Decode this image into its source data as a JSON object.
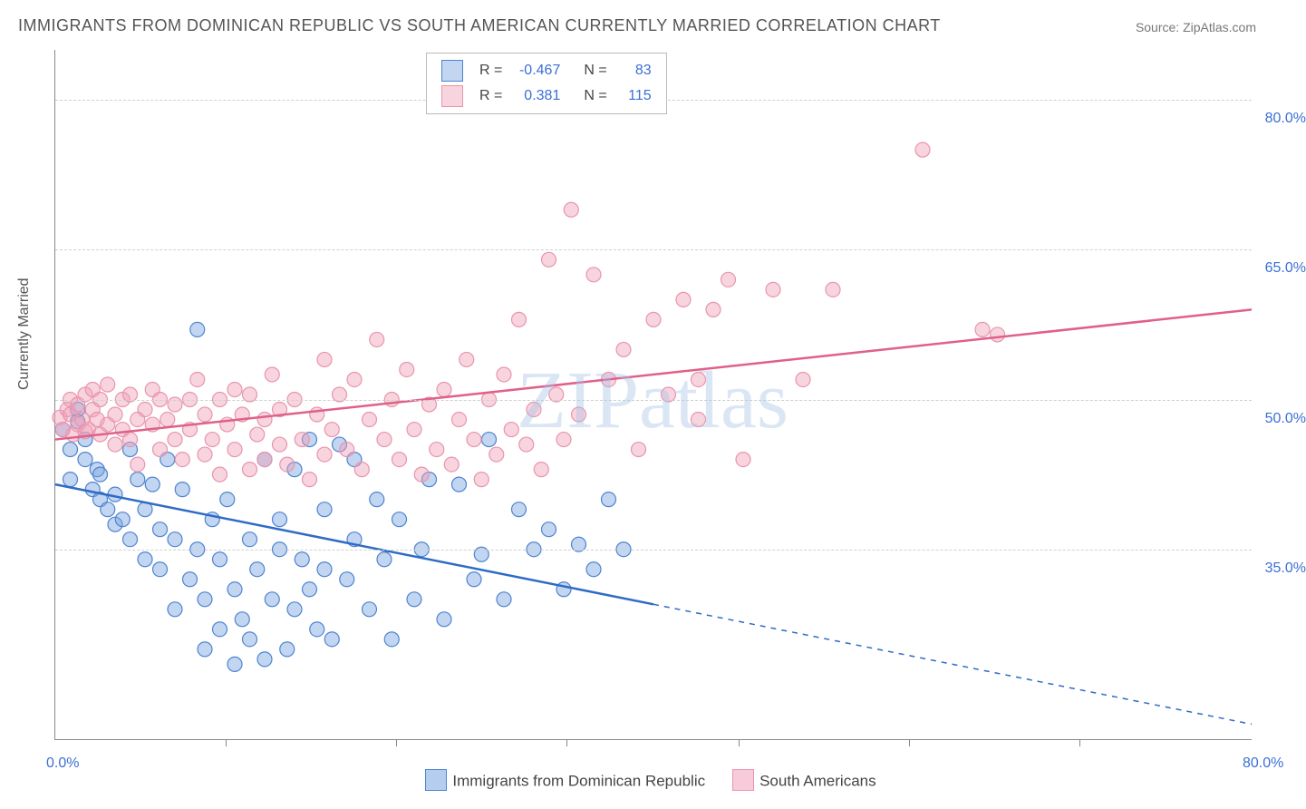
{
  "title": "IMMIGRANTS FROM DOMINICAN REPUBLIC VS SOUTH AMERICAN CURRENTLY MARRIED CORRELATION CHART",
  "source_label": "Source:",
  "source_name": "ZipAtlas.com",
  "watermark": "ZIPatlas",
  "ylabel": "Currently Married",
  "chart": {
    "type": "scatter-correlation",
    "xlim": [
      0,
      80
    ],
    "ylim": [
      16,
      85
    ],
    "xticks": [
      0,
      80
    ],
    "xtick_labels": [
      "0.0%",
      "80.0%"
    ],
    "minor_xticks": [
      11.4,
      22.8,
      34.2,
      45.7,
      57.1,
      68.5
    ],
    "yticks": [
      35,
      50,
      65,
      80
    ],
    "ytick_labels": [
      "35.0%",
      "50.0%",
      "65.0%",
      "80.0%"
    ],
    "grid_color": "#d0d0d0",
    "background_color": "#ffffff",
    "axis_color": "#888888",
    "value_color": "#3b6fd6",
    "marker_radius": 8,
    "marker_stroke_width": 1.2,
    "line_width": 2.5
  },
  "series": [
    {
      "name": "Immigrants from Dominican Republic",
      "fill": "rgba(120,165,225,0.45)",
      "stroke": "#4f84d0",
      "line_color": "#2f6bc5",
      "R": "-0.467",
      "N": "83",
      "trend": {
        "x1": 0,
        "y1": 41.5,
        "x2": 40,
        "y2": 29.5,
        "dash_x2": 80,
        "dash_y2": 17.5
      },
      "points": [
        [
          0.5,
          47
        ],
        [
          1,
          45
        ],
        [
          1,
          42
        ],
        [
          1.5,
          49
        ],
        [
          1.5,
          47.8
        ],
        [
          2,
          44
        ],
        [
          2,
          46
        ],
        [
          2.5,
          41
        ],
        [
          2.8,
          43
        ],
        [
          3,
          40
        ],
        [
          3,
          42.5
        ],
        [
          3.5,
          39
        ],
        [
          4,
          37.5
        ],
        [
          4,
          40.5
        ],
        [
          4.5,
          38
        ],
        [
          5,
          36
        ],
        [
          5,
          45
        ],
        [
          5.5,
          42
        ],
        [
          6,
          34
        ],
        [
          6,
          39
        ],
        [
          6.5,
          41.5
        ],
        [
          7,
          37
        ],
        [
          7,
          33
        ],
        [
          7.5,
          44
        ],
        [
          8,
          29
        ],
        [
          8,
          36
        ],
        [
          8.5,
          41
        ],
        [
          9,
          32
        ],
        [
          9.5,
          35
        ],
        [
          9.5,
          57
        ],
        [
          10,
          25
        ],
        [
          10,
          30
        ],
        [
          10.5,
          38
        ],
        [
          11,
          27
        ],
        [
          11,
          34
        ],
        [
          11.5,
          40
        ],
        [
          12,
          23.5
        ],
        [
          12,
          31
        ],
        [
          12.5,
          28
        ],
        [
          13,
          36
        ],
        [
          13,
          26
        ],
        [
          13.5,
          33
        ],
        [
          14,
          44
        ],
        [
          14,
          24
        ],
        [
          14.5,
          30
        ],
        [
          15,
          38
        ],
        [
          15,
          35
        ],
        [
          15.5,
          25
        ],
        [
          16,
          43
        ],
        [
          16,
          29
        ],
        [
          16.5,
          34
        ],
        [
          17,
          31
        ],
        [
          17,
          46
        ],
        [
          17.5,
          27
        ],
        [
          18,
          33
        ],
        [
          18,
          39
        ],
        [
          18.5,
          26
        ],
        [
          19,
          45.5
        ],
        [
          19.5,
          32
        ],
        [
          20,
          36
        ],
        [
          20,
          44
        ],
        [
          21,
          29
        ],
        [
          21.5,
          40
        ],
        [
          22,
          34
        ],
        [
          22.5,
          26
        ],
        [
          23,
          38
        ],
        [
          24,
          30
        ],
        [
          24.5,
          35
        ],
        [
          25,
          42
        ],
        [
          26,
          28
        ],
        [
          27,
          41.5
        ],
        [
          28,
          32
        ],
        [
          28.5,
          34.5
        ],
        [
          29,
          46
        ],
        [
          30,
          30
        ],
        [
          31,
          39
        ],
        [
          32,
          35
        ],
        [
          33,
          37
        ],
        [
          34,
          31
        ],
        [
          35,
          35.5
        ],
        [
          36,
          33
        ],
        [
          37,
          40
        ],
        [
          38,
          35
        ]
      ]
    },
    {
      "name": "South Americans",
      "fill": "rgba(240,160,185,0.45)",
      "stroke": "#e895ad",
      "line_color": "#e06088",
      "R": "0.381",
      "N": "115",
      "trend": {
        "x1": 0,
        "y1": 46,
        "x2": 80,
        "y2": 59
      },
      "points": [
        [
          0.3,
          48.2
        ],
        [
          0.5,
          47
        ],
        [
          0.8,
          49
        ],
        [
          1,
          48.5
        ],
        [
          1,
          50
        ],
        [
          1.2,
          46.5
        ],
        [
          1.5,
          47.5
        ],
        [
          1.5,
          49.5
        ],
        [
          1.8,
          48
        ],
        [
          2,
          46.8
        ],
        [
          2,
          50.5
        ],
        [
          2.2,
          47
        ],
        [
          2.5,
          49
        ],
        [
          2.5,
          51
        ],
        [
          2.8,
          48
        ],
        [
          3,
          46.5
        ],
        [
          3,
          50
        ],
        [
          3.5,
          47.5
        ],
        [
          3.5,
          51.5
        ],
        [
          4,
          48.5
        ],
        [
          4,
          45.5
        ],
        [
          4.5,
          50
        ],
        [
          4.5,
          47
        ],
        [
          5,
          46
        ],
        [
          5,
          50.5
        ],
        [
          5.5,
          48
        ],
        [
          5.5,
          43.5
        ],
        [
          6,
          49
        ],
        [
          6.5,
          47.5
        ],
        [
          6.5,
          51
        ],
        [
          7,
          45
        ],
        [
          7,
          50
        ],
        [
          7.5,
          48
        ],
        [
          8,
          49.5
        ],
        [
          8,
          46
        ],
        [
          8.5,
          44
        ],
        [
          9,
          50
        ],
        [
          9,
          47
        ],
        [
          9.5,
          52
        ],
        [
          10,
          48.5
        ],
        [
          10,
          44.5
        ],
        [
          10.5,
          46
        ],
        [
          11,
          50
        ],
        [
          11,
          42.5
        ],
        [
          11.5,
          47.5
        ],
        [
          12,
          51
        ],
        [
          12,
          45
        ],
        [
          12.5,
          48.5
        ],
        [
          13,
          43
        ],
        [
          13,
          50.5
        ],
        [
          13.5,
          46.5
        ],
        [
          14,
          48
        ],
        [
          14,
          44
        ],
        [
          14.5,
          52.5
        ],
        [
          15,
          45.5
        ],
        [
          15,
          49
        ],
        [
          15.5,
          43.5
        ],
        [
          16,
          50
        ],
        [
          16.5,
          46
        ],
        [
          17,
          42
        ],
        [
          17.5,
          48.5
        ],
        [
          18,
          44.5
        ],
        [
          18,
          54
        ],
        [
          18.5,
          47
        ],
        [
          19,
          50.5
        ],
        [
          19.5,
          45
        ],
        [
          20,
          52
        ],
        [
          20.5,
          43
        ],
        [
          21,
          48
        ],
        [
          21.5,
          56
        ],
        [
          22,
          46
        ],
        [
          22.5,
          50
        ],
        [
          23,
          44
        ],
        [
          23.5,
          53
        ],
        [
          24,
          47
        ],
        [
          24.5,
          42.5
        ],
        [
          25,
          49.5
        ],
        [
          25.5,
          45
        ],
        [
          26,
          51
        ],
        [
          26.5,
          43.5
        ],
        [
          27,
          48
        ],
        [
          27.5,
          54
        ],
        [
          28,
          46
        ],
        [
          28.5,
          42
        ],
        [
          29,
          50
        ],
        [
          29.5,
          44.5
        ],
        [
          30,
          52.5
        ],
        [
          30.5,
          47
        ],
        [
          31,
          58
        ],
        [
          31.5,
          45.5
        ],
        [
          32,
          49
        ],
        [
          32.5,
          43
        ],
        [
          33,
          64
        ],
        [
          33.5,
          50.5
        ],
        [
          34,
          46
        ],
        [
          34.5,
          69
        ],
        [
          35,
          48.5
        ],
        [
          36,
          62.5
        ],
        [
          37,
          52
        ],
        [
          38,
          55
        ],
        [
          39,
          45
        ],
        [
          40,
          58
        ],
        [
          41,
          50.5
        ],
        [
          42,
          60
        ],
        [
          43,
          48
        ],
        [
          43,
          52
        ],
        [
          44,
          59
        ],
        [
          45,
          62
        ],
        [
          46,
          44
        ],
        [
          48,
          61
        ],
        [
          50,
          52
        ],
        [
          52,
          61
        ],
        [
          58,
          75
        ],
        [
          62,
          57
        ],
        [
          63,
          56.5
        ]
      ]
    }
  ],
  "legend_bottom": {
    "items": [
      {
        "label": "Immigrants from Dominican Republic",
        "fill": "rgba(120,165,225,0.55)",
        "stroke": "#4f84d0"
      },
      {
        "label": "South Americans",
        "fill": "rgba(240,160,185,0.55)",
        "stroke": "#e895ad"
      }
    ]
  },
  "legend_top": {
    "R_label": "R =",
    "N_label": "N ="
  }
}
